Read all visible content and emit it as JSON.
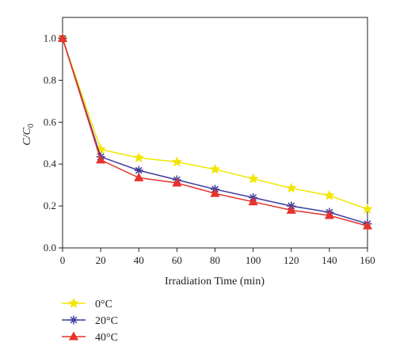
{
  "chart_data": {
    "type": "line",
    "x": [
      0,
      20,
      40,
      60,
      80,
      100,
      120,
      140,
      160
    ],
    "xlabel": "Irradiation Time (min)",
    "ylabel": {
      "main": "C/C",
      "sub": "0"
    },
    "xlim": [
      0,
      160
    ],
    "ylim": [
      0,
      1.1
    ],
    "xticks": [
      0,
      20,
      40,
      60,
      80,
      100,
      120,
      140,
      160
    ],
    "yticks": [
      0.0,
      0.2,
      0.4,
      0.6,
      0.8,
      1.0
    ],
    "ytick_labels": [
      "0.0",
      "0.2",
      "0.4",
      "0.6",
      "0.8",
      "1.0"
    ],
    "grid": false,
    "legend_position": "bottom-left, below plot",
    "series": [
      {
        "name": "0°C",
        "color": "#f2e600",
        "marker": "star",
        "values": [
          1.0,
          0.47,
          0.43,
          0.41,
          0.375,
          0.33,
          0.285,
          0.25,
          0.185
        ]
      },
      {
        "name": "20°C",
        "color": "#3c3c9c",
        "marker": "asterisk",
        "values": [
          1.0,
          0.435,
          0.37,
          0.325,
          0.28,
          0.24,
          0.2,
          0.17,
          0.115
        ]
      },
      {
        "name": "40°C",
        "color": "#e8322a",
        "marker": "triangle",
        "values": [
          1.0,
          0.42,
          0.335,
          0.31,
          0.26,
          0.22,
          0.18,
          0.155,
          0.105
        ]
      }
    ]
  }
}
